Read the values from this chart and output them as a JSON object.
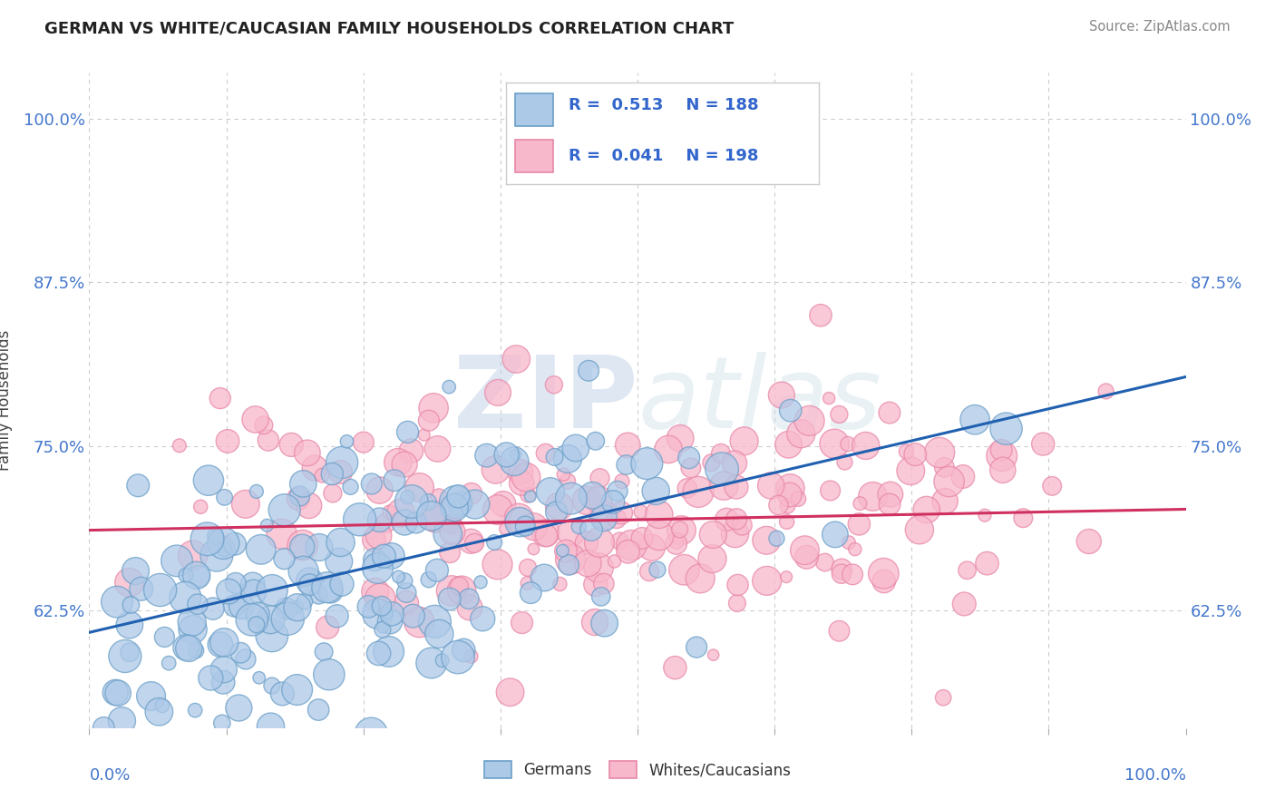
{
  "title": "GERMAN VS WHITE/CAUCASIAN FAMILY HOUSEHOLDS CORRELATION CHART",
  "source": "Source: ZipAtlas.com",
  "ylabel": "Family Households",
  "ytick_labels": [
    "62.5%",
    "75.0%",
    "87.5%",
    "100.0%"
  ],
  "ytick_values": [
    0.625,
    0.75,
    0.875,
    1.0
  ],
  "xlim": [
    0.0,
    1.0
  ],
  "ylim": [
    0.535,
    1.035
  ],
  "legend_r_blue": "R =  0.513",
  "legend_n_blue": "N = 188",
  "legend_r_pink": "R =  0.041",
  "legend_n_pink": "N = 198",
  "blue_face_color": "#adc9e8",
  "blue_edge_color": "#6b9fc8",
  "blue_line_color": "#2060b0",
  "pink_face_color": "#f8b8cc",
  "pink_edge_color": "#e888a8",
  "pink_line_color": "#d03060",
  "background_color": "#ffffff",
  "watermark": "ZIPatlas",
  "grid_color": "#cccccc",
  "tick_color": "#4477cc",
  "seed": 42,
  "n_blue": 188,
  "n_pink": 198,
  "blue_slope": 0.195,
  "blue_intercept": 0.608,
  "pink_slope": 0.016,
  "pink_intercept": 0.686
}
